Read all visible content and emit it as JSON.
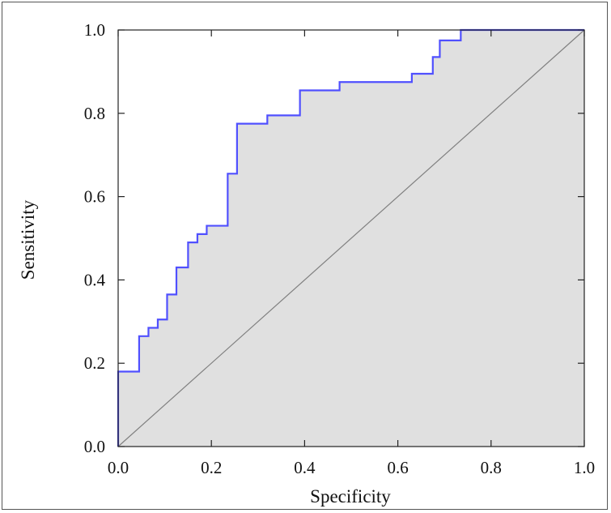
{
  "chart_data": {
    "type": "line",
    "title": "",
    "xlabel": "Specificity",
    "ylabel": "Sensitivity",
    "xlim": [
      0,
      1
    ],
    "ylim": [
      0,
      1
    ],
    "x_ticks": [
      "0.0",
      "0.2",
      "0.4",
      "0.6",
      "0.8",
      "1.0"
    ],
    "y_ticks": [
      "0.0",
      "0.2",
      "0.4",
      "0.6",
      "0.8",
      "1.0"
    ],
    "grid": false,
    "legend": "none",
    "colors": {
      "curve": "#5050ff",
      "area_fill": "#e0e0e0",
      "diagonal": "#808080",
      "axes": "#222222"
    },
    "series": [
      {
        "values": [
          [
            0.0,
            0.0
          ],
          [
            0.0,
            0.18
          ],
          [
            0.045,
            0.18
          ],
          [
            0.045,
            0.265
          ],
          [
            0.065,
            0.265
          ],
          [
            0.065,
            0.285
          ],
          [
            0.085,
            0.285
          ],
          [
            0.085,
            0.305
          ],
          [
            0.105,
            0.305
          ],
          [
            0.105,
            0.365
          ],
          [
            0.125,
            0.365
          ],
          [
            0.125,
            0.43
          ],
          [
            0.15,
            0.43
          ],
          [
            0.15,
            0.49
          ],
          [
            0.17,
            0.49
          ],
          [
            0.17,
            0.51
          ],
          [
            0.19,
            0.51
          ],
          [
            0.19,
            0.53
          ],
          [
            0.235,
            0.53
          ],
          [
            0.235,
            0.655
          ],
          [
            0.255,
            0.655
          ],
          [
            0.255,
            0.775
          ],
          [
            0.32,
            0.775
          ],
          [
            0.32,
            0.795
          ],
          [
            0.39,
            0.795
          ],
          [
            0.39,
            0.855
          ],
          [
            0.475,
            0.855
          ],
          [
            0.475,
            0.875
          ],
          [
            0.63,
            0.875
          ],
          [
            0.63,
            0.895
          ],
          [
            0.675,
            0.895
          ],
          [
            0.675,
            0.935
          ],
          [
            0.69,
            0.935
          ],
          [
            0.69,
            0.975
          ],
          [
            0.735,
            0.975
          ],
          [
            0.735,
            1.0
          ],
          [
            1.0,
            1.0
          ]
        ]
      }
    ],
    "reference_line": [
      [
        0,
        0
      ],
      [
        1,
        1
      ]
    ]
  }
}
